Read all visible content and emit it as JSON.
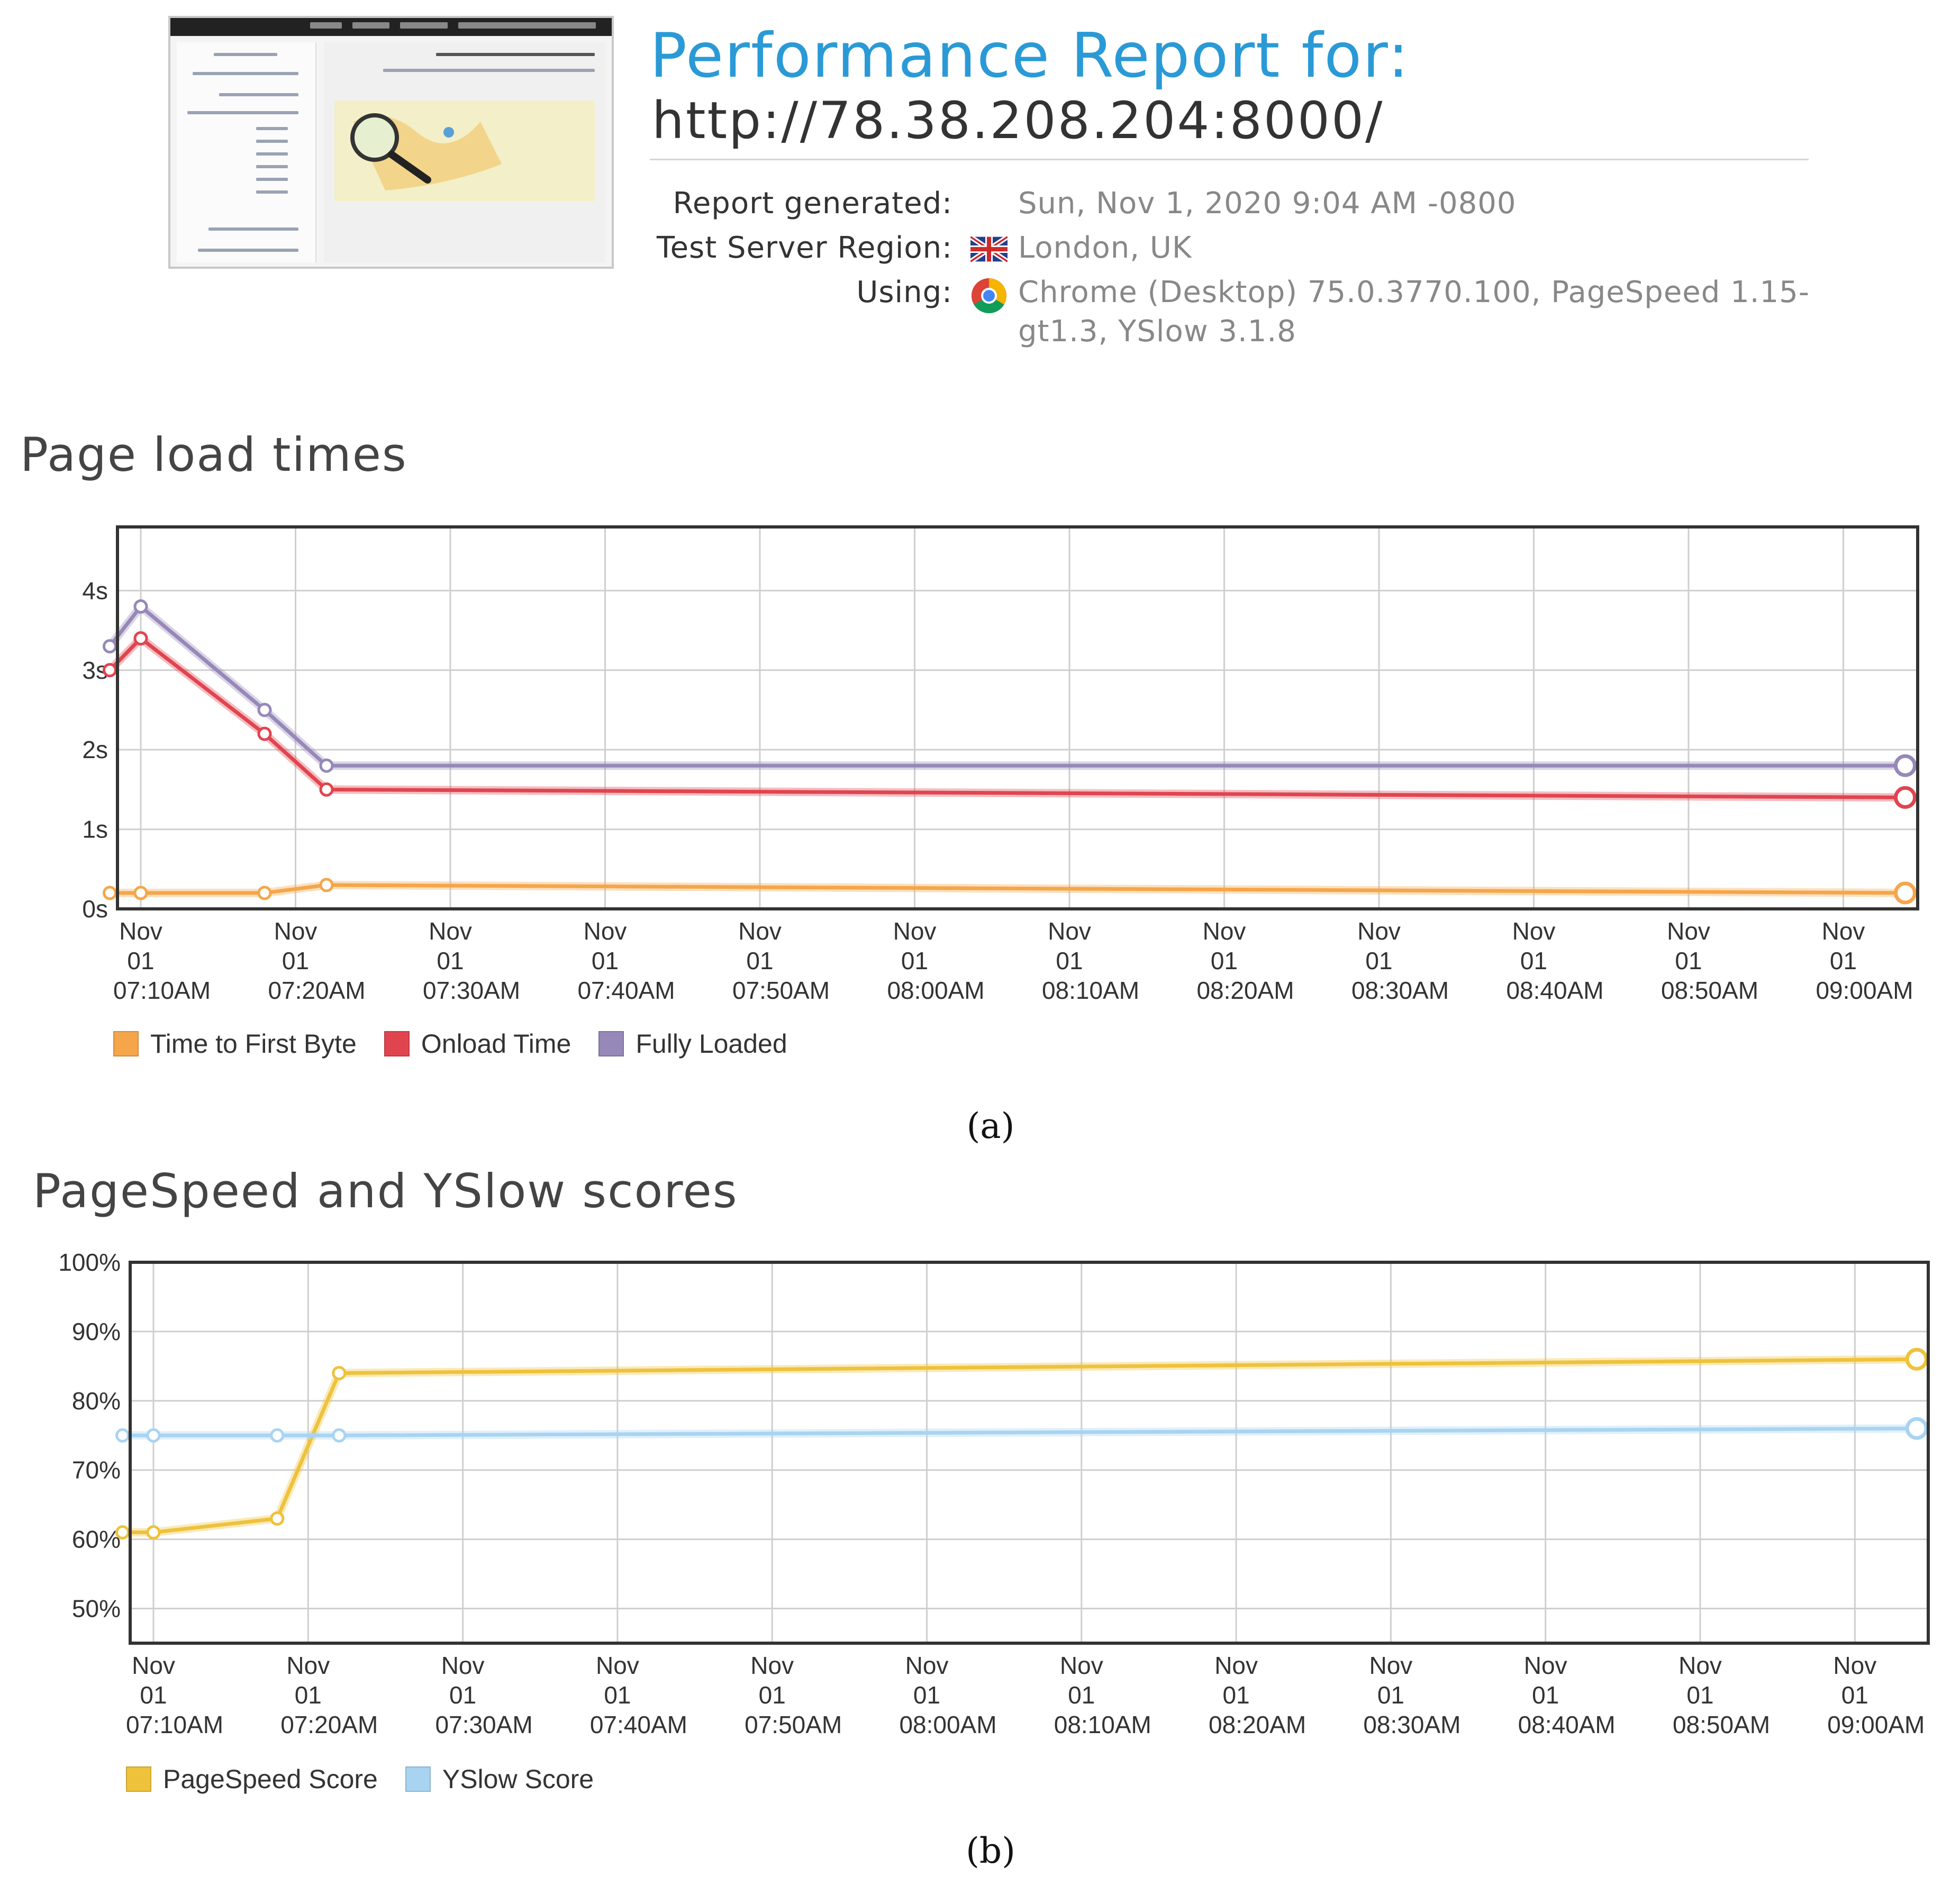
{
  "header": {
    "title": "Performance Report for:",
    "url": "http://78.38.208.204:8000/",
    "report_generated_label": "Report generated:",
    "report_generated_value": "Sun, Nov 1, 2020 9:04 AM -0800",
    "region_label": "Test Server Region:",
    "region_value": "London, UK",
    "using_label": "Using:",
    "using_value_line1": "Chrome (Desktop) 75.0.3770.100, PageSpeed 1.15-",
    "using_value_line2": "gt1.3, YSlow 3.1.8",
    "icons": [
      "uk-flag-icon",
      "chrome-icon"
    ]
  },
  "captions": {
    "a": "(a)",
    "b": "(b)"
  },
  "chart_data": [
    {
      "type": "line",
      "title": "Page load times",
      "x_tick_labels": [
        [
          "Nov",
          "01",
          "07:10AM"
        ],
        [
          "Nov",
          "01",
          "07:20AM"
        ],
        [
          "Nov",
          "01",
          "07:30AM"
        ],
        [
          "Nov",
          "01",
          "07:40AM"
        ],
        [
          "Nov",
          "01",
          "07:50AM"
        ],
        [
          "Nov",
          "01",
          "08:00AM"
        ],
        [
          "Nov",
          "01",
          "08:10AM"
        ],
        [
          "Nov",
          "01",
          "08:20AM"
        ],
        [
          "Nov",
          "01",
          "08:30AM"
        ],
        [
          "Nov",
          "01",
          "08:40AM"
        ],
        [
          "Nov",
          "01",
          "08:50AM"
        ],
        [
          "Nov",
          "01",
          "09:00AM"
        ]
      ],
      "y_tick_labels": [
        "0s",
        "1s",
        "2s",
        "3s",
        "4s"
      ],
      "ylim": [
        0,
        4.8
      ],
      "grid": true,
      "legend_position": "bottom-left",
      "series": [
        {
          "name": "Time to First Byte",
          "color": "#f5a64a",
          "x": [
            "07:08",
            "07:10",
            "07:18",
            "07:22",
            "09:04"
          ],
          "values": [
            0.2,
            0.2,
            0.2,
            0.3,
            0.2
          ]
        },
        {
          "name": "Onload Time",
          "color": "#e0454f",
          "x": [
            "07:08",
            "07:10",
            "07:18",
            "07:22",
            "09:04"
          ],
          "values": [
            3.0,
            3.4,
            2.2,
            1.5,
            1.4
          ]
        },
        {
          "name": "Fully Loaded",
          "color": "#9688b8",
          "x": [
            "07:08",
            "07:10",
            "07:18",
            "07:22",
            "09:04"
          ],
          "values": [
            3.3,
            3.8,
            2.5,
            1.8,
            1.8
          ]
        }
      ]
    },
    {
      "type": "line",
      "title": "PageSpeed and YSlow scores",
      "x_tick_labels": [
        [
          "Nov",
          "01",
          "07:10AM"
        ],
        [
          "Nov",
          "01",
          "07:20AM"
        ],
        [
          "Nov",
          "01",
          "07:30AM"
        ],
        [
          "Nov",
          "01",
          "07:40AM"
        ],
        [
          "Nov",
          "01",
          "07:50AM"
        ],
        [
          "Nov",
          "01",
          "08:00AM"
        ],
        [
          "Nov",
          "01",
          "08:10AM"
        ],
        [
          "Nov",
          "01",
          "08:20AM"
        ],
        [
          "Nov",
          "01",
          "08:30AM"
        ],
        [
          "Nov",
          "01",
          "08:40AM"
        ],
        [
          "Nov",
          "01",
          "08:50AM"
        ],
        [
          "Nov",
          "01",
          "09:00AM"
        ]
      ],
      "y_tick_labels": [
        "50%",
        "60%",
        "70%",
        "80%",
        "90%",
        "100%"
      ],
      "ylim": [
        45,
        100
      ],
      "grid": true,
      "legend_position": "bottom-left",
      "series": [
        {
          "name": "PageSpeed Score",
          "color": "#efc23c",
          "x": [
            "07:08",
            "07:10",
            "07:18",
            "07:22",
            "09:04"
          ],
          "values": [
            61,
            61,
            63,
            84,
            86
          ]
        },
        {
          "name": "YSlow Score",
          "color": "#a8d4f2",
          "x": [
            "07:08",
            "07:10",
            "07:18",
            "07:22",
            "09:04"
          ],
          "values": [
            75,
            75,
            75,
            75,
            76
          ]
        }
      ]
    }
  ]
}
